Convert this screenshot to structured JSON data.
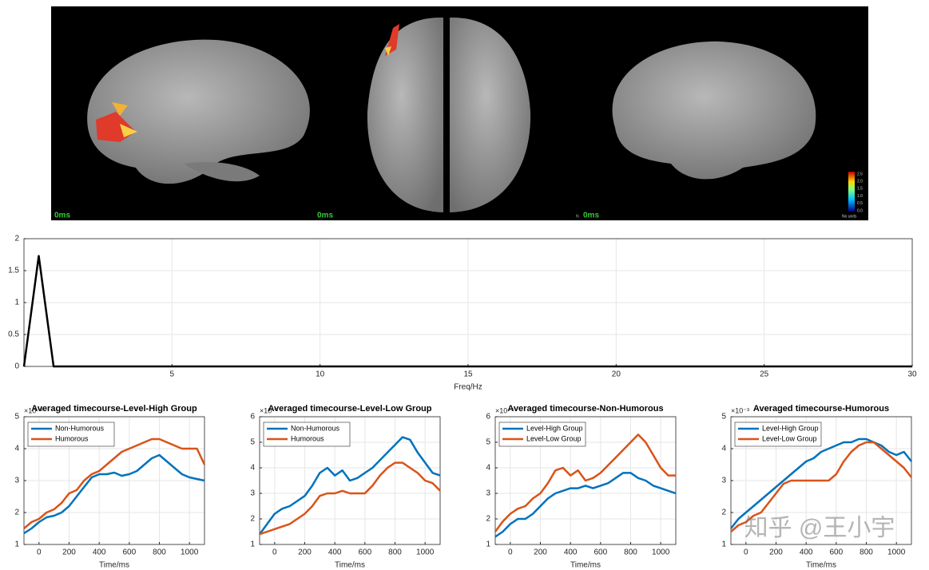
{
  "brain_panel": {
    "time_labels": [
      "0ms",
      "0ms",
      "0ms"
    ],
    "orientation_label": "N",
    "colorbar_ticks": [
      "2.5",
      "2.0",
      "1.5",
      "1.0",
      "0.5",
      "0.0"
    ],
    "colorbar_label": "No units"
  },
  "watermark": "知乎 @王小宇",
  "chart_data": [
    {
      "type": "line",
      "xlabel": "Freq/Hz",
      "xlim": [
        0,
        30
      ],
      "ylim": [
        0,
        2
      ],
      "xticks": [
        5,
        10,
        15,
        20,
        25,
        30
      ],
      "yticks": [
        0,
        0.5,
        1,
        1.5,
        2
      ],
      "grid": true,
      "x": [
        0,
        0.5,
        1,
        30
      ],
      "values": [
        0,
        1.73,
        0,
        0
      ],
      "color": "#000000"
    },
    {
      "type": "line",
      "title": "Averaged timecourse-Level-High Group",
      "xlabel": "Time/ms",
      "y_multiplier": "×10⁻³",
      "xlim": [
        -100,
        1100
      ],
      "ylim": [
        1,
        5
      ],
      "xticks": [
        0,
        200,
        400,
        600,
        800,
        1000
      ],
      "yticks": [
        1,
        2,
        3,
        4,
        5
      ],
      "grid": true,
      "legend": "upper left",
      "x": [
        -100,
        -50,
        0,
        50,
        100,
        150,
        200,
        250,
        300,
        350,
        400,
        450,
        500,
        550,
        600,
        650,
        700,
        750,
        800,
        850,
        900,
        950,
        1000,
        1050,
        1100
      ],
      "series": [
        {
          "name": "Non-Humorous",
          "color": "#0072bd",
          "values": [
            1.35,
            1.5,
            1.7,
            1.85,
            1.9,
            2.0,
            2.2,
            2.5,
            2.8,
            3.1,
            3.2,
            3.2,
            3.25,
            3.15,
            3.2,
            3.3,
            3.5,
            3.7,
            3.8,
            3.6,
            3.4,
            3.2,
            3.1,
            3.05,
            3.0
          ]
        },
        {
          "name": "Humorous",
          "color": "#d95319",
          "values": [
            1.5,
            1.7,
            1.8,
            2.0,
            2.1,
            2.3,
            2.6,
            2.7,
            3.0,
            3.2,
            3.3,
            3.5,
            3.7,
            3.9,
            4.0,
            4.1,
            4.2,
            4.3,
            4.3,
            4.2,
            4.1,
            4.0,
            4.0,
            4.0,
            3.5
          ]
        }
      ]
    },
    {
      "type": "line",
      "title": "Averaged timecourse-Level-Low Group",
      "xlabel": "Time/ms",
      "y_multiplier": "×10⁻³",
      "xlim": [
        -100,
        1100
      ],
      "ylim": [
        1,
        6
      ],
      "xticks": [
        0,
        200,
        400,
        600,
        800,
        1000
      ],
      "yticks": [
        1,
        2,
        3,
        4,
        5,
        6
      ],
      "grid": true,
      "legend": "upper left",
      "x": [
        -100,
        -50,
        0,
        50,
        100,
        150,
        200,
        250,
        300,
        350,
        400,
        450,
        500,
        550,
        600,
        650,
        700,
        750,
        800,
        850,
        900,
        950,
        1000,
        1050,
        1100
      ],
      "series": [
        {
          "name": "Non-Humorous",
          "color": "#0072bd",
          "values": [
            1.4,
            1.8,
            2.2,
            2.4,
            2.5,
            2.7,
            2.9,
            3.3,
            3.8,
            4.0,
            3.7,
            3.9,
            3.5,
            3.6,
            3.8,
            4.0,
            4.3,
            4.6,
            4.9,
            5.2,
            5.1,
            4.6,
            4.2,
            3.8,
            3.7
          ]
        },
        {
          "name": "Humorous",
          "color": "#d95319",
          "values": [
            1.4,
            1.5,
            1.6,
            1.7,
            1.8,
            2.0,
            2.2,
            2.5,
            2.9,
            3.0,
            3.0,
            3.1,
            3.0,
            3.0,
            3.0,
            3.3,
            3.7,
            4.0,
            4.2,
            4.2,
            4.0,
            3.8,
            3.5,
            3.4,
            3.1
          ]
        }
      ]
    },
    {
      "type": "line",
      "title": "Averaged timecourse-Non-Humorous",
      "xlabel": "Time/ms",
      "y_multiplier": "×10⁻³",
      "xlim": [
        -100,
        1100
      ],
      "ylim": [
        1,
        6
      ],
      "xticks": [
        0,
        200,
        400,
        600,
        800,
        1000
      ],
      "yticks": [
        1,
        2,
        3,
        4,
        5,
        6
      ],
      "grid": true,
      "legend": "upper left",
      "x": [
        -100,
        -50,
        0,
        50,
        100,
        150,
        200,
        250,
        300,
        350,
        400,
        450,
        500,
        550,
        600,
        650,
        700,
        750,
        800,
        850,
        900,
        950,
        1000,
        1050,
        1100
      ],
      "series": [
        {
          "name": "Level-High Group",
          "color": "#0072bd",
          "values": [
            1.3,
            1.5,
            1.8,
            2.0,
            2.0,
            2.2,
            2.5,
            2.8,
            3.0,
            3.1,
            3.2,
            3.2,
            3.3,
            3.2,
            3.3,
            3.4,
            3.6,
            3.8,
            3.8,
            3.6,
            3.5,
            3.3,
            3.2,
            3.1,
            3.0
          ]
        },
        {
          "name": "Level-Low Group",
          "color": "#d95319",
          "values": [
            1.5,
            1.9,
            2.2,
            2.4,
            2.5,
            2.8,
            3.0,
            3.4,
            3.9,
            4.0,
            3.7,
            3.9,
            3.5,
            3.6,
            3.8,
            4.1,
            4.4,
            4.7,
            5.0,
            5.3,
            5.0,
            4.5,
            4.0,
            3.7,
            3.7
          ]
        }
      ]
    },
    {
      "type": "line",
      "title": "Averaged timecourse-Humorous",
      "xlabel": "Time/ms",
      "y_multiplier": "×10⁻³",
      "xlim": [
        -100,
        1100
      ],
      "ylim": [
        1,
        5
      ],
      "xticks": [
        0,
        200,
        400,
        600,
        800,
        1000
      ],
      "yticks": [
        1,
        2,
        3,
        4,
        5
      ],
      "grid": true,
      "legend": "upper left",
      "x": [
        -100,
        -50,
        0,
        50,
        100,
        150,
        200,
        250,
        300,
        350,
        400,
        450,
        500,
        550,
        600,
        650,
        700,
        750,
        800,
        850,
        900,
        950,
        1000,
        1050,
        1100
      ],
      "series": [
        {
          "name": "Level-High Group",
          "color": "#0072bd",
          "values": [
            1.5,
            1.8,
            2.0,
            2.2,
            2.4,
            2.6,
            2.8,
            3.0,
            3.2,
            3.4,
            3.6,
            3.7,
            3.9,
            4.0,
            4.1,
            4.2,
            4.2,
            4.3,
            4.3,
            4.2,
            4.1,
            3.9,
            3.8,
            3.9,
            3.6
          ]
        },
        {
          "name": "Level-Low Group",
          "color": "#d95319",
          "values": [
            1.4,
            1.6,
            1.7,
            1.9,
            2.0,
            2.3,
            2.6,
            2.9,
            3.0,
            3.0,
            3.0,
            3.0,
            3.0,
            3.0,
            3.2,
            3.6,
            3.9,
            4.1,
            4.2,
            4.2,
            4.0,
            3.8,
            3.6,
            3.4,
            3.1
          ]
        }
      ]
    }
  ]
}
